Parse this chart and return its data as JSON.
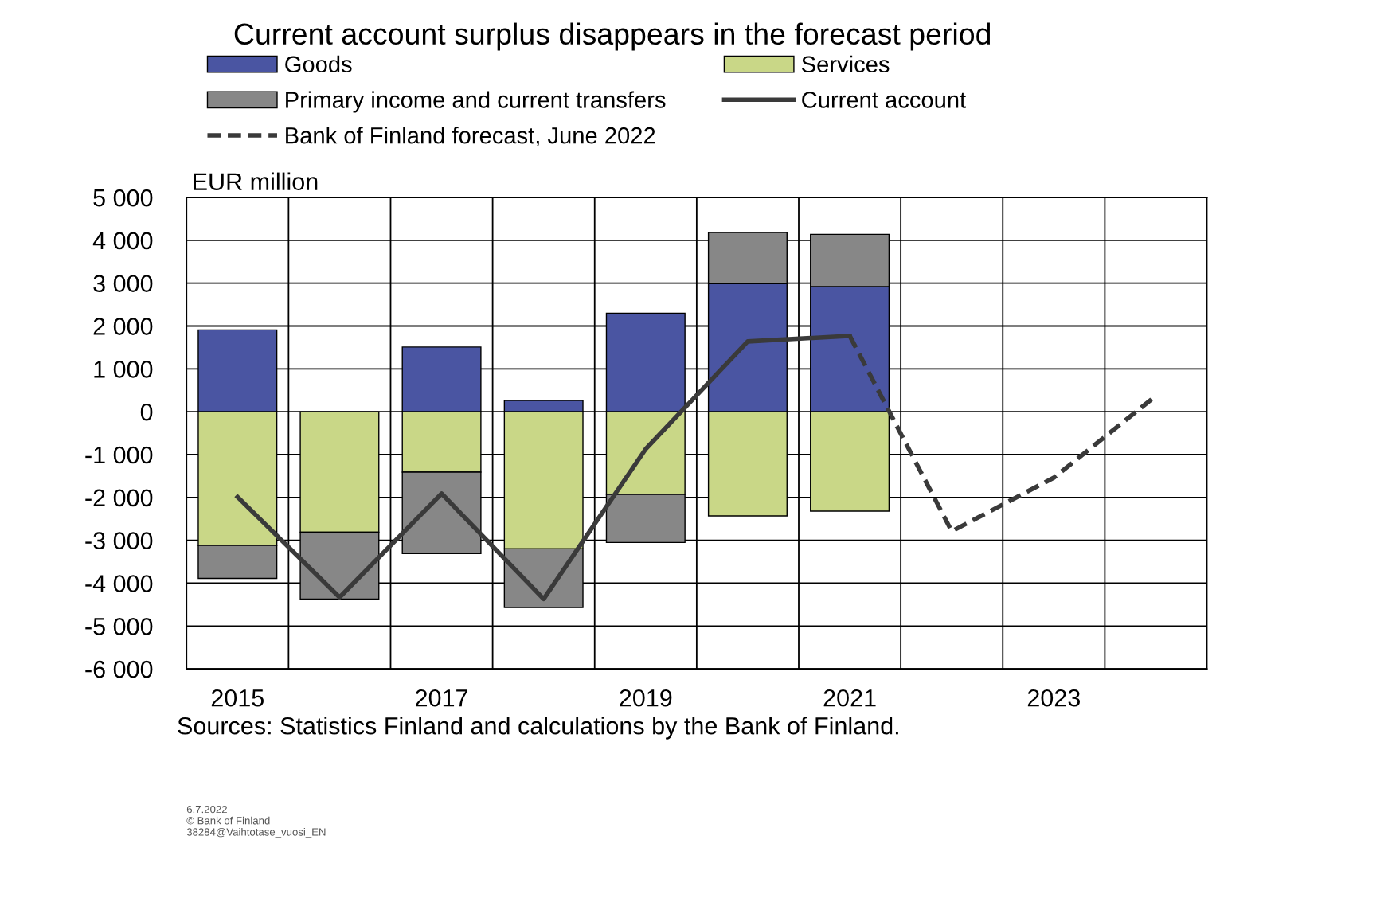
{
  "chart_data": {
    "type": "bar",
    "stacked": true,
    "title": "Current account surplus disappears in the forecast period",
    "ylabel": "EUR million",
    "categories": [
      "2015",
      null,
      "2017",
      null,
      "2019",
      null,
      "2021",
      null,
      "2023",
      null
    ],
    "series": [
      {
        "name": "Goods",
        "color": "#4a55a2",
        "values": [
          1910,
          null,
          1510,
          260,
          2300,
          2990,
          2920,
          null,
          null,
          null
        ]
      },
      {
        "name": "Services",
        "color": "#c9d787",
        "values": [
          -3120,
          -2810,
          -1410,
          -3200,
          -1930,
          -2430,
          -2320,
          null,
          null,
          null
        ]
      },
      {
        "name": "Primary income and current transfers",
        "color": "#878787",
        "values": [
          -770,
          -1560,
          -1900,
          -1370,
          -1120,
          1190,
          1220,
          null,
          null,
          null
        ]
      },
      {
        "name": "Current account",
        "type": "line",
        "line_style": "solid",
        "color": "#3a3a3a",
        "values": [
          -1990,
          -4330,
          -1910,
          -4370,
          -870,
          1640,
          1770,
          null,
          null,
          null
        ]
      },
      {
        "name": "Bank of Finland forecast, June 2022",
        "type": "line",
        "line_style": "dashed",
        "color": "#3a3a3a",
        "values": [
          null,
          null,
          null,
          null,
          null,
          null,
          1770,
          -2790,
          -1540,
          370
        ]
      }
    ],
    "ylim": [
      -6000,
      5000
    ],
    "yticks": [
      {
        "value": 5000,
        "label": "5 000"
      },
      {
        "value": 4000,
        "label": "4 000"
      },
      {
        "value": 3000,
        "label": "3 000"
      },
      {
        "value": 2000,
        "label": "2 000"
      },
      {
        "value": 1000,
        "label": "1 000"
      },
      0,
      {
        "value": -1000,
        "label": "-1 000"
      },
      {
        "value": -2000,
        "label": "-2 000"
      },
      {
        "value": -3000,
        "label": "-3 000"
      },
      {
        "value": -4000,
        "label": "-4 000"
      },
      {
        "value": -5000,
        "label": "-5 000"
      },
      {
        "value": -6000,
        "label": "-6 000"
      }
    ],
    "grid": true,
    "legend": "top",
    "annotations": [
      "Sources: Statistics Finland and calculations by the Bank of Finland.",
      "6.7.2022\n© Bank of Finland\n38284@Vaihtotase_vuosi_EN"
    ]
  }
}
